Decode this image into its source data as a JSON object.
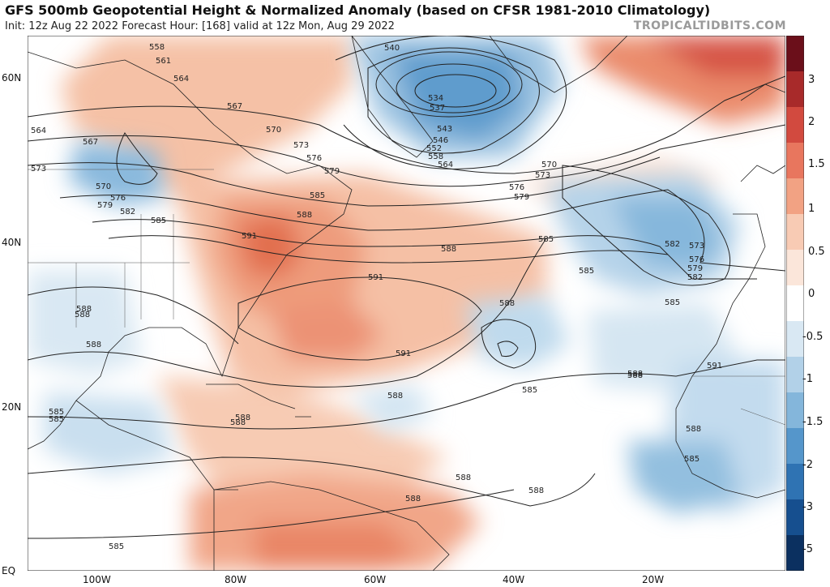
{
  "header": {
    "title": "GFS 500mb Geopotential Height & Normalized Anomaly (based on CFSR 1981-2010 Climatology)",
    "subtitle": "Init: 12z Aug 22 2022   Forecast Hour: [168]   valid at 12z Mon, Aug 29 2022",
    "brand": "TROPICALTIDBITS.COM"
  },
  "axes": {
    "lat_labels": [
      "60N",
      "40N",
      "20N",
      "EQ"
    ],
    "lon_labels": [
      "100W",
      "80W",
      "60W",
      "40W",
      "20W"
    ]
  },
  "colorbar": {
    "labels": [
      "3",
      "2",
      "1.5",
      "1",
      "0.5",
      "0",
      "-0.5",
      "-1",
      "-1.5",
      "-2",
      "-3",
      "-5"
    ],
    "colors": [
      "#6b0f1a",
      "#a82a2a",
      "#d24a3f",
      "#e8765e",
      "#f2a283",
      "#f8cbb4",
      "#fbe6da",
      "#ffffff",
      "#d9e8f3",
      "#b2d1e8",
      "#84b6db",
      "#5596cb",
      "#2f73b3",
      "#164f8f",
      "#0b3060"
    ]
  },
  "contour_labels": [
    "540",
    "534",
    "537",
    "543",
    "546",
    "552",
    "558",
    "564",
    "570",
    "573",
    "576",
    "579",
    "582",
    "585",
    "588",
    "591",
    "558",
    "561",
    "564",
    "567",
    "570",
    "573",
    "576",
    "579",
    "585",
    "588",
    "591",
    "564",
    "567",
    "573",
    "570",
    "576",
    "579",
    "582",
    "585",
    "588",
    "588",
    "585",
    "588",
    "585",
    "588",
    "588",
    "591",
    "588",
    "585",
    "588",
    "588",
    "588",
    "585",
    "573",
    "576",
    "579",
    "582",
    "585",
    "588",
    "591",
    "588",
    "585",
    "588",
    "585",
    "588"
  ]
}
